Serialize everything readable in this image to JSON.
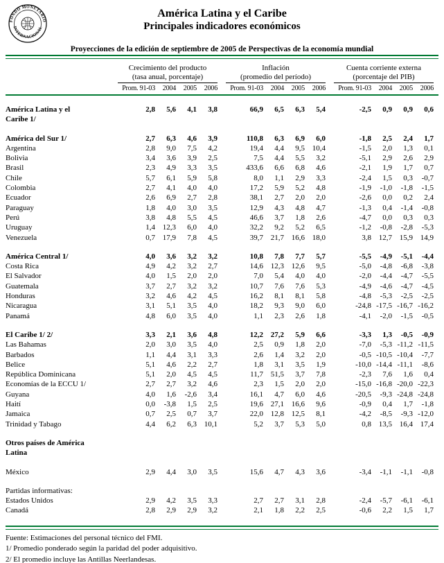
{
  "header": {
    "title": "América Latina y el Caribe",
    "subtitle": "Principales indicadores económicos",
    "banner": "Proyecciones de la edición de septiembre de 2005 de Perspectivas de la economía mundial",
    "logo_top": "FONDO MONETARIO",
    "logo_bottom": "INTERNACIONAL"
  },
  "colors": {
    "rule_green": "#007A33"
  },
  "table": {
    "groups": [
      {
        "title": "Crecimiento del producto",
        "subtitle": "(tasa anual, porcentaje)"
      },
      {
        "title": "Inflación",
        "subtitle": "(promedio del período)"
      },
      {
        "title": "Cuenta corriente externa",
        "subtitle": "(porcentaje del PIB)"
      }
    ],
    "year_headers": [
      "Prom. 91-03",
      "2004",
      "2005",
      "2006"
    ],
    "rows": [
      {
        "label": "América Latina y el\nCaribe 1/",
        "bold": true,
        "v": [
          [
            "2,8",
            "5,6",
            "4,1",
            "3,8"
          ],
          [
            "66,9",
            "6,5",
            "6,3",
            "5,4"
          ],
          [
            "-2,5",
            "0,9",
            "0,9",
            "0,6"
          ]
        ]
      },
      {
        "label": "América del Sur 1/",
        "bold": true,
        "gap": true,
        "v": [
          [
            "2,7",
            "6,3",
            "4,6",
            "3,9"
          ],
          [
            "110,8",
            "6,3",
            "6,9",
            "6,0"
          ],
          [
            "-1,8",
            "2,5",
            "2,4",
            "1,7"
          ]
        ]
      },
      {
        "label": "Argentina",
        "v": [
          [
            "2,8",
            "9,0",
            "7,5",
            "4,2"
          ],
          [
            "19,4",
            "4,4",
            "9,5",
            "10,4"
          ],
          [
            "-1,5",
            "2,0",
            "1,3",
            "0,1"
          ]
        ]
      },
      {
        "label": "Bolivia",
        "v": [
          [
            "3,4",
            "3,6",
            "3,9",
            "2,5"
          ],
          [
            "7,5",
            "4,4",
            "5,5",
            "3,2"
          ],
          [
            "-5,1",
            "2,9",
            "2,6",
            "2,9"
          ]
        ]
      },
      {
        "label": "Brasil",
        "v": [
          [
            "2,3",
            "4,9",
            "3,3",
            "3,5"
          ],
          [
            "433,6",
            "6,6",
            "6,8",
            "4,6"
          ],
          [
            "-2,1",
            "1,9",
            "1,7",
            "0,7"
          ]
        ]
      },
      {
        "label": "Chile",
        "v": [
          [
            "5,7",
            "6,1",
            "5,9",
            "5,8"
          ],
          [
            "8,0",
            "1,1",
            "2,9",
            "3,3"
          ],
          [
            "-2,4",
            "1,5",
            "0,3",
            "-0,7"
          ]
        ]
      },
      {
        "label": "Colombia",
        "v": [
          [
            "2,7",
            "4,1",
            "4,0",
            "4,0"
          ],
          [
            "17,2",
            "5,9",
            "5,2",
            "4,8"
          ],
          [
            "-1,9",
            "-1,0",
            "-1,8",
            "-1,5"
          ]
        ]
      },
      {
        "label": "Ecuador",
        "v": [
          [
            "2,6",
            "6,9",
            "2,7",
            "2,8"
          ],
          [
            "38,1",
            "2,7",
            "2,0",
            "2,0"
          ],
          [
            "-2,6",
            "0,0",
            "0,2",
            "2,4"
          ]
        ]
      },
      {
        "label": "Paraguay",
        "v": [
          [
            "1,8",
            "4,0",
            "3,0",
            "3,5"
          ],
          [
            "12,9",
            "4,3",
            "4,8",
            "4,7"
          ],
          [
            "-1,3",
            "0,4",
            "-1,4",
            "-0,8"
          ]
        ]
      },
      {
        "label": "Perú",
        "v": [
          [
            "3,8",
            "4,8",
            "5,5",
            "4,5"
          ],
          [
            "46,6",
            "3,7",
            "1,8",
            "2,6"
          ],
          [
            "-4,7",
            "0,0",
            "0,3",
            "0,3"
          ]
        ]
      },
      {
        "label": "Uruguay",
        "v": [
          [
            "1,4",
            "12,3",
            "6,0",
            "4,0"
          ],
          [
            "32,2",
            "9,2",
            "5,2",
            "6,5"
          ],
          [
            "-1,2",
            "-0,8",
            "-2,8",
            "-5,3"
          ]
        ]
      },
      {
        "label": "Venezuela",
        "v": [
          [
            "0,7",
            "17,9",
            "7,8",
            "4,5"
          ],
          [
            "39,7",
            "21,7",
            "16,6",
            "18,0"
          ],
          [
            "3,8",
            "12,7",
            "15,9",
            "14,9"
          ]
        ]
      },
      {
        "label": "América Central 1/",
        "bold": true,
        "gap": true,
        "v": [
          [
            "4,0",
            "3,6",
            "3,2",
            "3,2"
          ],
          [
            "10,8",
            "7,8",
            "7,7",
            "5,7"
          ],
          [
            "-5,5",
            "-4,9",
            "-5,1",
            "-4,4"
          ]
        ]
      },
      {
        "label": "Costa Rica",
        "v": [
          [
            "4,9",
            "4,2",
            "3,2",
            "2,7"
          ],
          [
            "14,6",
            "12,3",
            "12,6",
            "9,5"
          ],
          [
            "-5,0",
            "-4,8",
            "-6,8",
            "-3,8"
          ]
        ]
      },
      {
        "label": "El Salvador",
        "v": [
          [
            "4,0",
            "1,5",
            "2,0",
            "2,0"
          ],
          [
            "7,0",
            "5,4",
            "4,0",
            "4,0"
          ],
          [
            "-2,0",
            "-4,4",
            "-4,7",
            "-5,5"
          ]
        ]
      },
      {
        "label": "Guatemala",
        "v": [
          [
            "3,7",
            "2,7",
            "3,2",
            "3,2"
          ],
          [
            "10,7",
            "7,6",
            "7,6",
            "5,3"
          ],
          [
            "-4,9",
            "-4,6",
            "-4,7",
            "-4,5"
          ]
        ]
      },
      {
        "label": "Honduras",
        "v": [
          [
            "3,2",
            "4,6",
            "4,2",
            "4,5"
          ],
          [
            "16,2",
            "8,1",
            "8,1",
            "5,8"
          ],
          [
            "-4,8",
            "-5,3",
            "-2,5",
            "-2,5"
          ]
        ]
      },
      {
        "label": "Nicaragua",
        "v": [
          [
            "3,1",
            "5,1",
            "3,5",
            "4,0"
          ],
          [
            "18,2",
            "9,3",
            "9,0",
            "6,0"
          ],
          [
            "-24,8",
            "-17,5",
            "-16,7",
            "-16,2"
          ]
        ]
      },
      {
        "label": "Panamá",
        "v": [
          [
            "4,8",
            "6,0",
            "3,5",
            "4,0"
          ],
          [
            "1,1",
            "2,3",
            "2,6",
            "1,8"
          ],
          [
            "-4,1",
            "-2,0",
            "-1,5",
            "-0,5"
          ]
        ]
      },
      {
        "label": "El Caribe 1/ 2/",
        "bold": true,
        "gap": true,
        "v": [
          [
            "3,3",
            "2,1",
            "3,6",
            "4,8"
          ],
          [
            "12,2",
            "27,2",
            "5,9",
            "6,6"
          ],
          [
            "-3,3",
            "1,3",
            "-0,5",
            "-0,9"
          ]
        ]
      },
      {
        "label": "Las Bahamas",
        "v": [
          [
            "2,0",
            "3,0",
            "3,5",
            "4,0"
          ],
          [
            "2,5",
            "0,9",
            "1,8",
            "2,0"
          ],
          [
            "-7,0",
            "-5,3",
            "-11,2",
            "-11,5"
          ]
        ]
      },
      {
        "label": "Barbados",
        "v": [
          [
            "1,1",
            "4,4",
            "3,1",
            "3,3"
          ],
          [
            "2,6",
            "1,4",
            "3,2",
            "2,0"
          ],
          [
            "-0,5",
            "-10,5",
            "-10,4",
            "-7,7"
          ]
        ]
      },
      {
        "label": "Belice",
        "v": [
          [
            "5,1",
            "4,6",
            "2,2",
            "2,7"
          ],
          [
            "1,8",
            "3,1",
            "3,5",
            "1,9"
          ],
          [
            "-10,0",
            "-14,4",
            "-11,1",
            "-8,6"
          ]
        ]
      },
      {
        "label": "República Dominicana",
        "v": [
          [
            "5,1",
            "2,0",
            "4,5",
            "4,5"
          ],
          [
            "11,7",
            "51,5",
            "3,7",
            "7,8"
          ],
          [
            "-2,3",
            "7,6",
            "1,6",
            "0,4"
          ]
        ]
      },
      {
        "label": "Economías de la ECCU 1/",
        "v": [
          [
            "2,7",
            "2,7",
            "3,2",
            "4,6"
          ],
          [
            "2,3",
            "1,5",
            "2,0",
            "2,0"
          ],
          [
            "-15,0",
            "-16,8",
            "-20,0",
            "-22,3"
          ]
        ]
      },
      {
        "label": "Guyana",
        "v": [
          [
            "4,0",
            "1,6",
            "-2,6",
            "3,4"
          ],
          [
            "16,1",
            "4,7",
            "6,0",
            "4,6"
          ],
          [
            "-20,5",
            "-9,3",
            "-24,8",
            "-24,8"
          ]
        ]
      },
      {
        "label": "Haití",
        "v": [
          [
            "0,0",
            "-3,8",
            "1,5",
            "2,5"
          ],
          [
            "19,6",
            "27,1",
            "16,6",
            "9,6"
          ],
          [
            "-0,9",
            "0,4",
            "1,7",
            "-1,8"
          ]
        ]
      },
      {
        "label": "Jamaica",
        "v": [
          [
            "0,7",
            "2,5",
            "0,7",
            "3,7"
          ],
          [
            "22,0",
            "12,8",
            "12,5",
            "8,1"
          ],
          [
            "-4,2",
            "-8,5",
            "-9,3",
            "-12,0"
          ]
        ]
      },
      {
        "label": "Trinidad y Tabago",
        "v": [
          [
            "4,4",
            "6,2",
            "6,3",
            "10,1"
          ],
          [
            "5,2",
            "3,7",
            "5,3",
            "5,0"
          ],
          [
            "0,8",
            "13,5",
            "16,4",
            "17,4"
          ]
        ]
      },
      {
        "label": "Otros países de América\nLatina",
        "bold": true,
        "gap": true,
        "v": null
      },
      {
        "label": "México",
        "gap": true,
        "v": [
          [
            "2,9",
            "4,4",
            "3,0",
            "3,5"
          ],
          [
            "15,6",
            "4,7",
            "4,3",
            "3,6"
          ],
          [
            "-3,4",
            "-1,1",
            "-1,1",
            "-0,8"
          ]
        ]
      },
      {
        "label": "Partidas informativas:",
        "gap": true,
        "v": null
      },
      {
        "label": "Estados Unidos",
        "v": [
          [
            "2,9",
            "4,2",
            "3,5",
            "3,3"
          ],
          [
            "2,7",
            "2,7",
            "3,1",
            "2,8"
          ],
          [
            "-2,4",
            "-5,7",
            "-6,1",
            "-6,1"
          ]
        ]
      },
      {
        "label": "Canadá",
        "v": [
          [
            "2,8",
            "2,9",
            "2,9",
            "3,2"
          ],
          [
            "2,1",
            "1,8",
            "2,2",
            "2,5"
          ],
          [
            "-0,6",
            "2,2",
            "1,5",
            "1,7"
          ]
        ]
      }
    ]
  },
  "footnotes": [
    "Fuente: Estimaciones del personal técnico del FMI.",
    "1/ Promedio ponderado según la paridad del poder adquisitivo.",
    "2/ El promedio incluye las Antillas Neerlandesas."
  ]
}
